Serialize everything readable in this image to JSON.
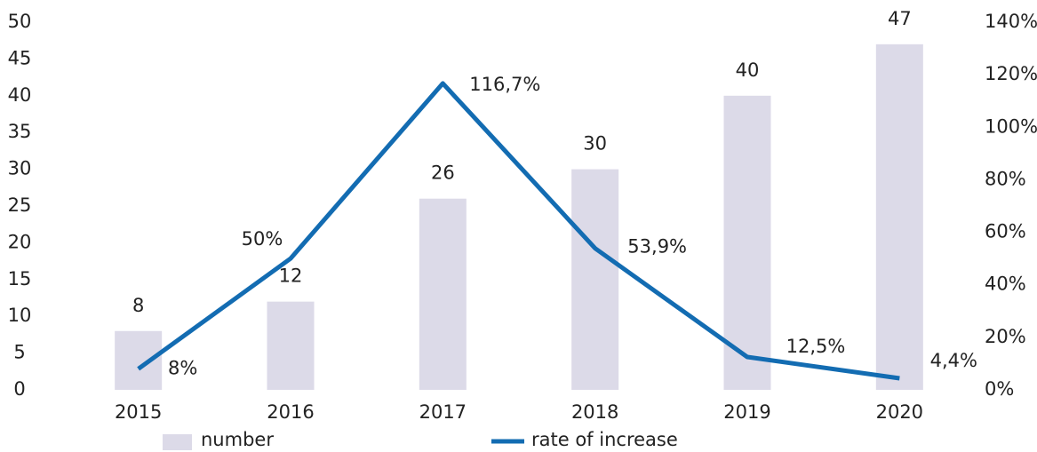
{
  "chart_data": {
    "type": "bar",
    "categories": [
      "2015",
      "2016",
      "2017",
      "2018",
      "2019",
      "2020"
    ],
    "series": [
      {
        "name": "number",
        "type": "bar",
        "color": "#dcdae8",
        "values": [
          8,
          12,
          26,
          30,
          40,
          47
        ]
      },
      {
        "name": "rate of increase",
        "type": "line",
        "color": "#136cb2",
        "axis": "y2",
        "values": [
          8,
          50,
          116.7,
          53.9,
          12.5,
          4.4
        ],
        "value_labels": [
          "8%",
          "50%",
          "116,7%",
          "53,9%",
          "12,5%",
          "4,4%"
        ]
      }
    ],
    "ylim": [
      0,
      50
    ],
    "yticks": [
      0,
      5,
      10,
      15,
      20,
      25,
      30,
      35,
      40,
      45,
      50
    ],
    "y2lim": [
      0,
      140
    ],
    "y2ticks": [
      {
        "value": 0,
        "label": "0%"
      },
      {
        "value": 20,
        "label": "20%"
      },
      {
        "value": 40,
        "label": "40%"
      },
      {
        "value": 60,
        "label": "60%"
      },
      {
        "value": 80,
        "label": "80%"
      },
      {
        "value": 100,
        "label": "100%"
      },
      {
        "value": 120,
        "label": "120%"
      },
      {
        "value": 140,
        "label": "140%"
      }
    ],
    "grid": false,
    "legend": "bottom"
  }
}
